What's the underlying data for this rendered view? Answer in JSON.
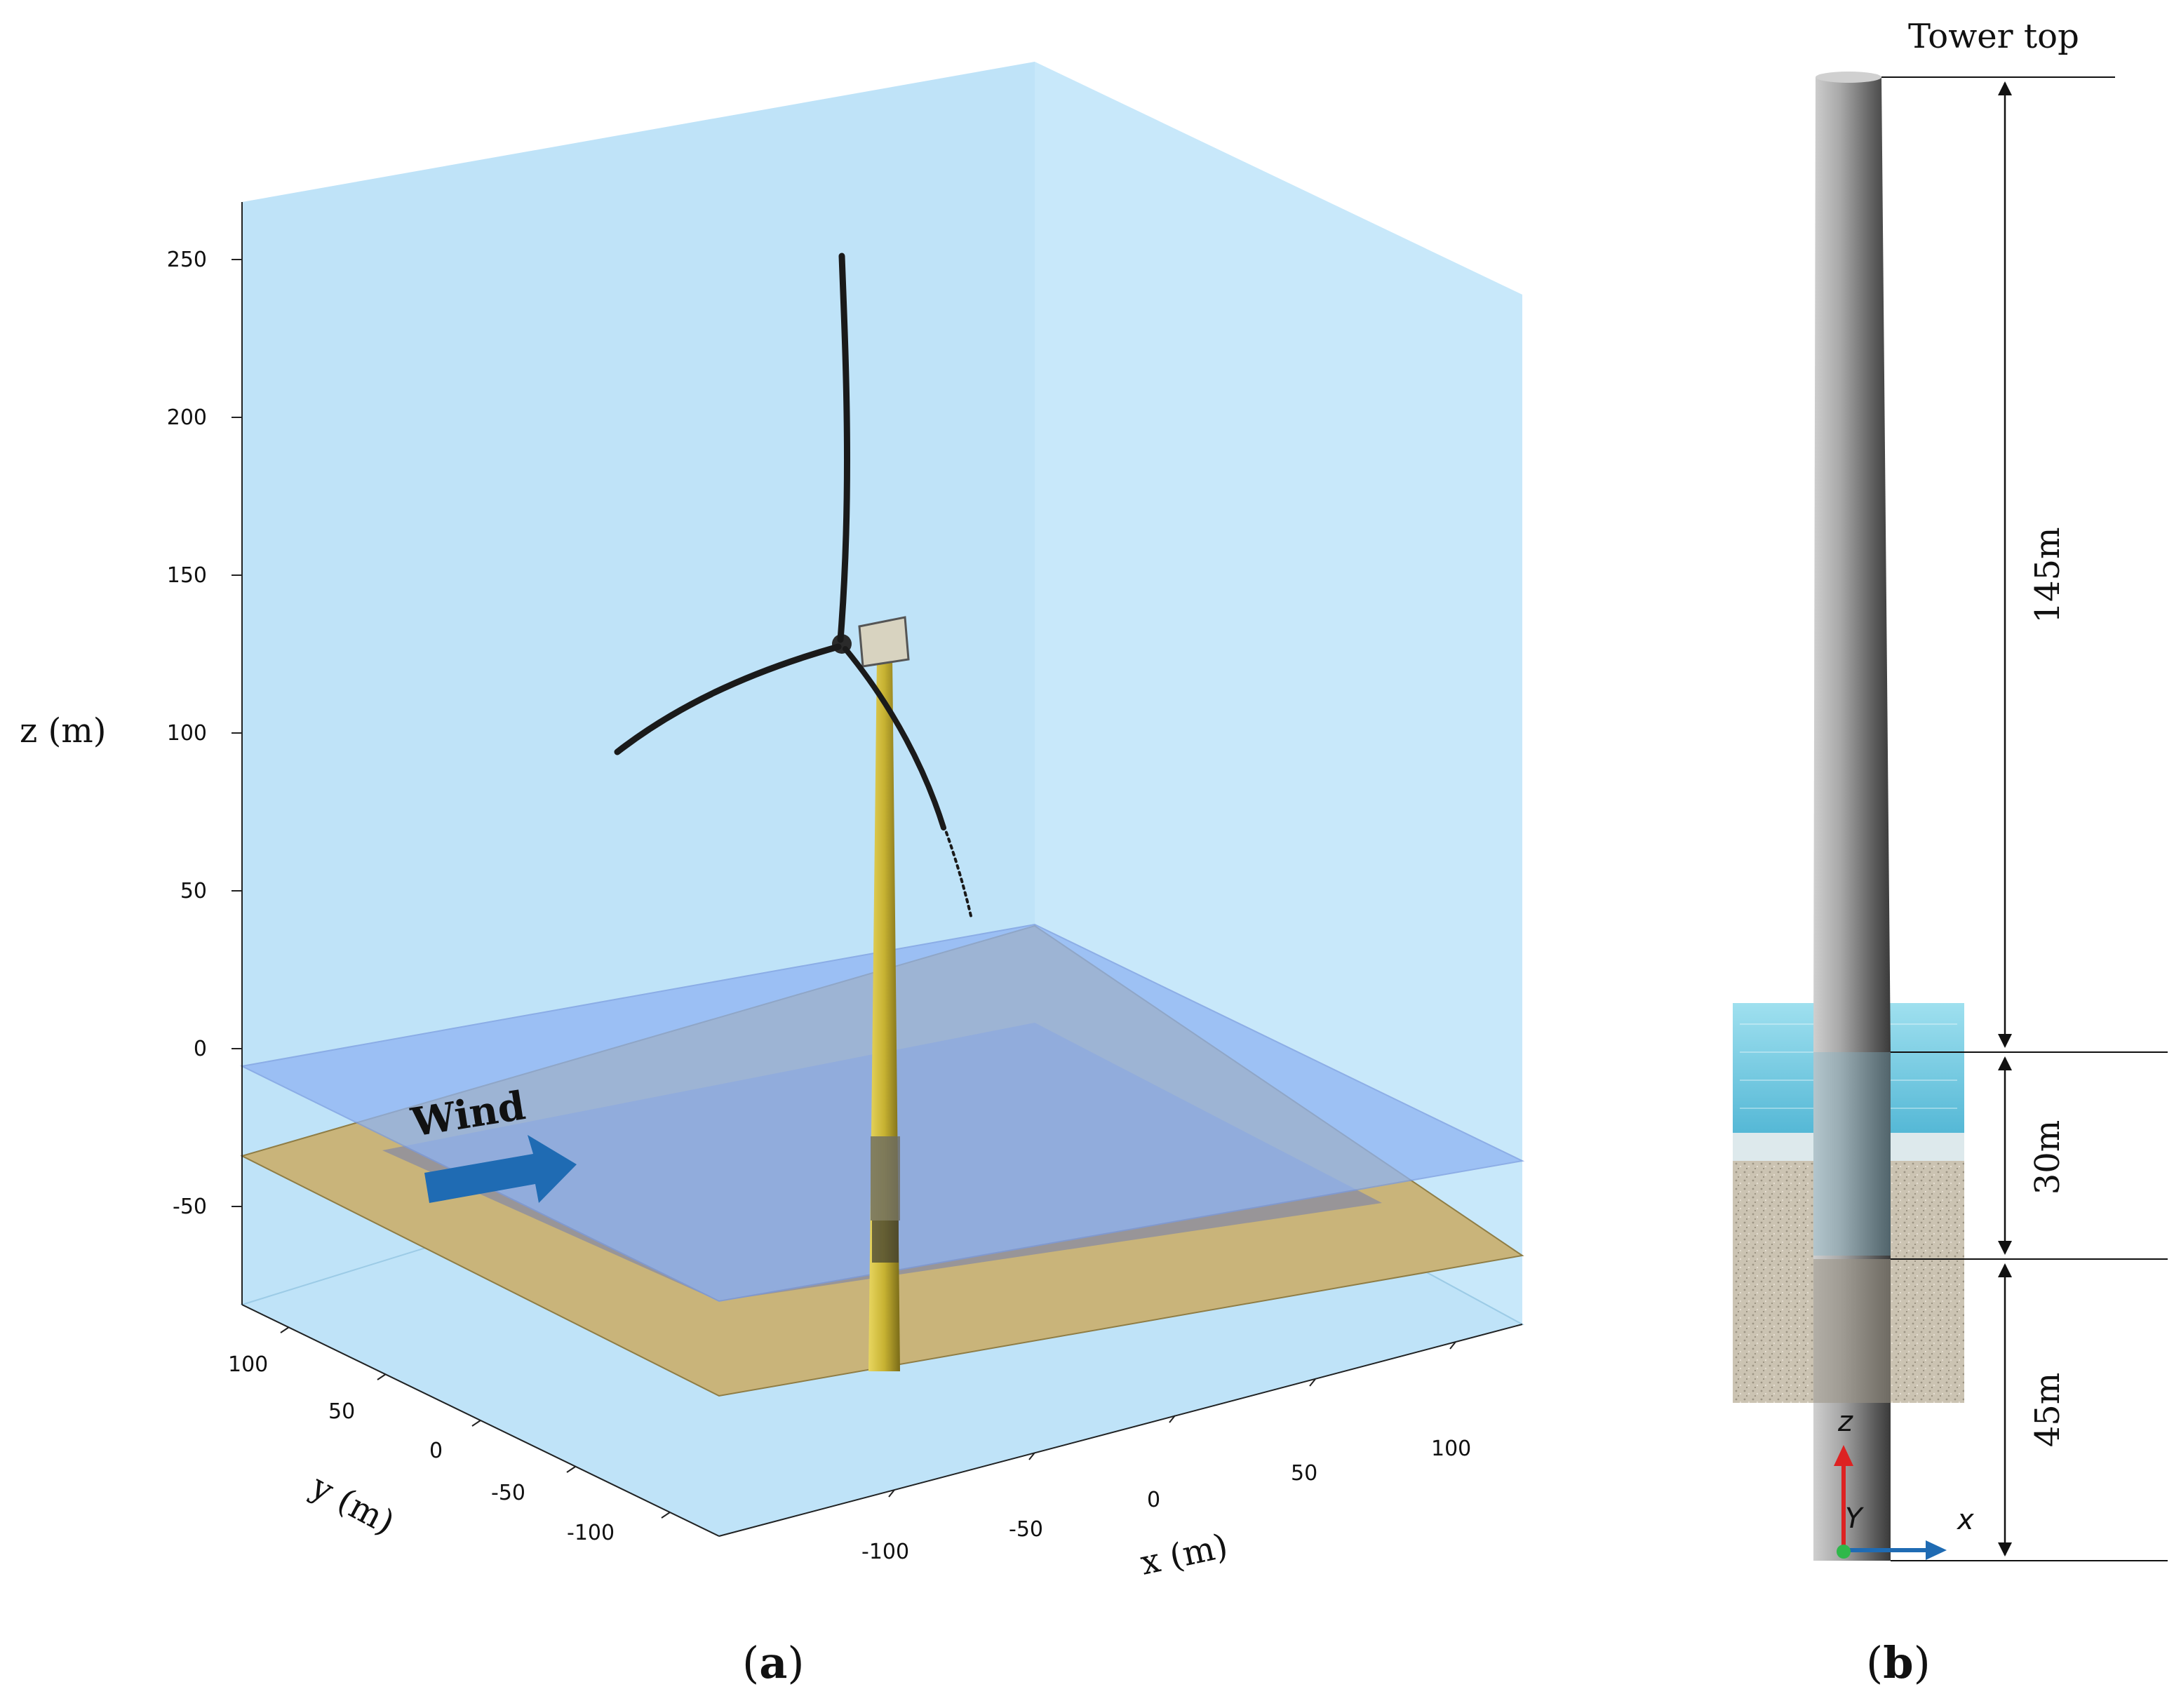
{
  "panel_a": {
    "z_axis": {
      "label": "z (m)",
      "ticks": [
        "250",
        "200",
        "150",
        "100",
        "50",
        "0",
        "-50"
      ]
    },
    "y_axis": {
      "label": "y (m)",
      "ticks": [
        "100",
        "50",
        "0",
        "-50",
        "-100"
      ]
    },
    "x_axis": {
      "label": "x (m)",
      "ticks": [
        "-100",
        "-50",
        "0",
        "50",
        "100"
      ]
    },
    "wind_label": "Wind",
    "caption_letter": "a"
  },
  "panel_b": {
    "tower_top_label": "Tower top",
    "dimensions": {
      "upper": "145m",
      "middle": "30m",
      "lower": "45m"
    },
    "triad": {
      "z": "z",
      "y": "Y",
      "x": "x"
    },
    "caption_letter": "b"
  },
  "colors": {
    "sky": "#bfe3f8",
    "sea_surface": "#8fb4f3",
    "seabed": "#c9b47a",
    "submerged": "#8f8f9e",
    "tower": "#d6c24a",
    "wind_arrow": "#1f6bb3",
    "water": "#6fc6e0",
    "soil": "#c9c1b0",
    "steel": "#8a8a8a"
  }
}
